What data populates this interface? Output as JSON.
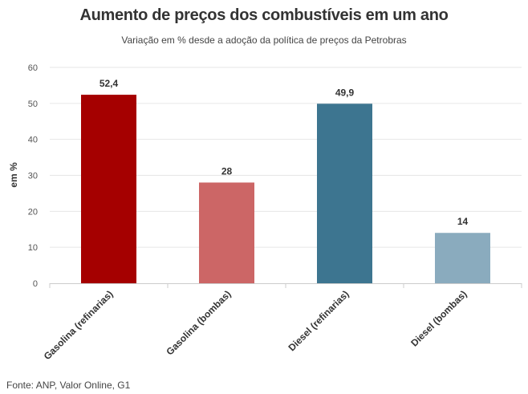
{
  "chart_data": {
    "type": "bar",
    "title": "Aumento de preços dos combustíveis em um ano",
    "subtitle": "Variação em % desde a adoção da política de preços da Petrobras",
    "ylabel": "em %",
    "xlabel": "",
    "ylim": [
      0,
      60
    ],
    "yticks": [
      "0",
      "10",
      "20",
      "30",
      "40",
      "50",
      "60"
    ],
    "categories": [
      "Gasolina (refinarias)",
      "Gasolina (bombas)",
      "Diesel (refinarias)",
      "Diesel (bombas)"
    ],
    "values": [
      52.4,
      28,
      49.9,
      14
    ],
    "value_labels": [
      "52,4",
      "28",
      "49,9",
      "14"
    ],
    "colors": [
      "#a50000",
      "#cc6666",
      "#3d7590",
      "#8aabbe"
    ],
    "grid": true
  },
  "source": "Fonte: ANP, Valor Online, G1"
}
